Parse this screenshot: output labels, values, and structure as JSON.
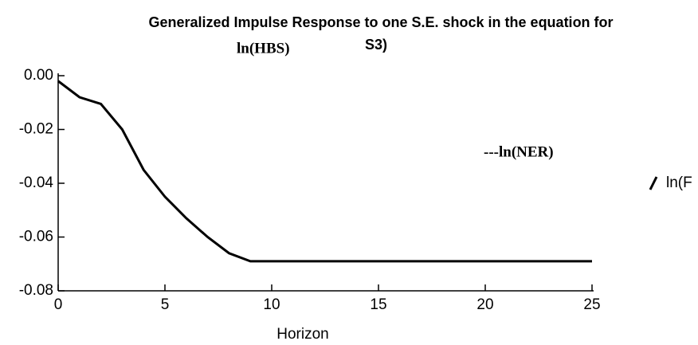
{
  "chart_data": {
    "type": "line",
    "title": "Generalized Impulse Response to one S.E. shock in the equation for",
    "subtitle": "ln(HBS)",
    "subtitle_overlap": "S3)",
    "annotation": "---ln(NER)",
    "x_label": "Horizon",
    "x": [
      0,
      1,
      2,
      3,
      4,
      5,
      6,
      7,
      8,
      9,
      10,
      11,
      12,
      13,
      14,
      15,
      16,
      17,
      18,
      19,
      20,
      21,
      22,
      23,
      24,
      25
    ],
    "series": [
      {
        "name": "ln(F",
        "color": "#000000",
        "values": [
          -0.002,
          -0.008,
          -0.0105,
          -0.02,
          -0.035,
          -0.045,
          -0.053,
          -0.06,
          -0.066,
          -0.069,
          -0.069,
          -0.069,
          -0.069,
          -0.069,
          -0.069,
          -0.069,
          -0.069,
          -0.069,
          -0.069,
          -0.069,
          -0.069,
          -0.069,
          -0.069,
          -0.069,
          -0.069,
          -0.069
        ]
      }
    ],
    "xlim": [
      0,
      25
    ],
    "xticks": [
      0,
      5,
      10,
      15,
      20,
      25
    ],
    "ylim": [
      -0.08,
      0
    ],
    "yticks": [
      {
        "value": 0,
        "label": "0.00"
      },
      {
        "value": -0.02,
        "label": "-0.02"
      },
      {
        "value": -0.04,
        "label": "-0.04"
      },
      {
        "value": -0.06,
        "label": "-0.06"
      },
      {
        "value": -0.08,
        "label": "-0.08"
      }
    ]
  }
}
